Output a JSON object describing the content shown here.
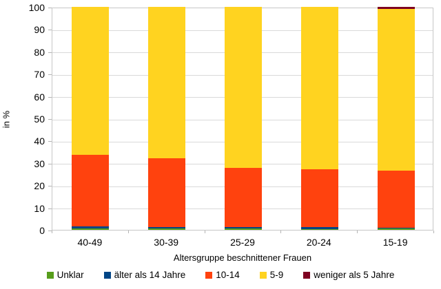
{
  "chart_data": {
    "type": "bar",
    "stacked": true,
    "orientation": "vertical",
    "categories": [
      "40-49",
      "30-39",
      "25-29",
      "20-24",
      "15-19"
    ],
    "series": [
      {
        "name": "Unklar",
        "color": "#579D1C",
        "values": [
          0.5,
          0.5,
          0.5,
          0.4,
          0.5
        ]
      },
      {
        "name": "älter als 14 Jahre",
        "color": "#004586",
        "values": [
          1.0,
          0.7,
          0.6,
          0.8,
          0.3
        ]
      },
      {
        "name": "10-14",
        "color": "#FF420E",
        "values": [
          32.0,
          30.8,
          26.7,
          26.0,
          25.6
        ]
      },
      {
        "name": "5-9",
        "color": "#FFD320",
        "values": [
          66.5,
          68.0,
          72.2,
          72.8,
          72.6
        ]
      },
      {
        "name": "weniger als 5 Jahre",
        "color": "#7E0021",
        "values": [
          0.0,
          0.0,
          0.0,
          0.0,
          1.0
        ]
      }
    ],
    "title": "",
    "xlabel": "Altersgruppe beschnittener Frauen",
    "ylabel": "in %",
    "ylim": [
      0,
      100
    ],
    "yticks": [
      0,
      10,
      20,
      30,
      40,
      50,
      60,
      70,
      80,
      90,
      100
    ],
    "grid": true,
    "legend_position": "bottom"
  },
  "style_colors": {
    "grid": "#d9d9d9",
    "axis": "#b3b3b3",
    "plot_border": "#c6c6c6"
  }
}
